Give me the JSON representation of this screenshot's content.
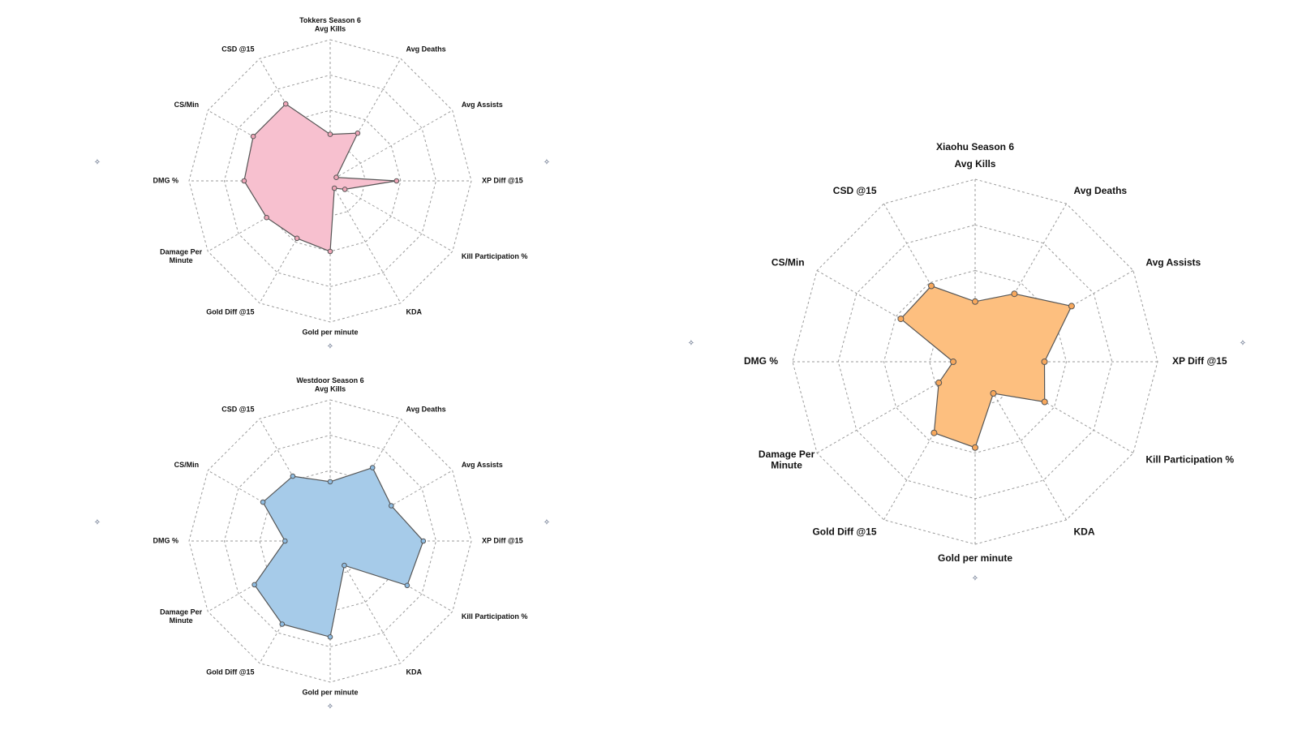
{
  "charts": [
    {
      "title": "Tokkers Season 6",
      "color": "#f7c0cf",
      "marker": "#f0a6b8",
      "chart_data": {
        "type": "radar",
        "axes": [
          "Avg Kills",
          "Avg Deaths",
          "Avg Assists",
          "XP Diff @15",
          "Kill Participation %",
          "KDA",
          "Gold per minute",
          "Gold Diff @15",
          "Damage Per Minute",
          "DMG %",
          "CS/Min",
          "CSD @15"
        ],
        "values": [
          0.33,
          0.39,
          0.05,
          0.47,
          0.12,
          0.06,
          0.5,
          0.47,
          0.52,
          0.61,
          0.63,
          0.63
        ],
        "scale": [
          0,
          1
        ],
        "rings": 4,
        "grid": true
      }
    },
    {
      "title": "Westdoor Season 6",
      "color": "#a6cbe9",
      "marker": "#8fbde3",
      "chart_data": {
        "type": "radar",
        "axes": [
          "Avg Kills",
          "Avg Deaths",
          "Avg Assists",
          "XP Diff @15",
          "Kill Participation %",
          "KDA",
          "Gold per minute",
          "Gold Diff @15",
          "Damage Per Minute",
          "DMG %",
          "CS/Min",
          "CSD @15"
        ],
        "values": [
          0.42,
          0.6,
          0.5,
          0.66,
          0.63,
          0.2,
          0.68,
          0.68,
          0.62,
          0.32,
          0.55,
          0.53
        ],
        "scale": [
          0,
          1
        ],
        "rings": 4,
        "grid": true
      }
    },
    {
      "title": "Xiaohu Season 6",
      "color": "#fdbf7f",
      "marker": "#f8a85c",
      "chart_data": {
        "type": "radar",
        "axes": [
          "Avg Kills",
          "Avg Deaths",
          "Avg Assists",
          "XP Diff @15",
          "Kill Participation %",
          "KDA",
          "Gold per minute",
          "Gold Diff @15",
          "Damage Per Minute",
          "DMG %",
          "CS/Min",
          "CSD @15"
        ],
        "values": [
          0.33,
          0.43,
          0.61,
          0.38,
          0.44,
          0.2,
          0.47,
          0.45,
          0.23,
          0.12,
          0.47,
          0.48
        ],
        "scale": [
          0,
          1
        ],
        "rings": 4,
        "grid": true
      }
    }
  ],
  "pin_icon": "pushpin-icon"
}
